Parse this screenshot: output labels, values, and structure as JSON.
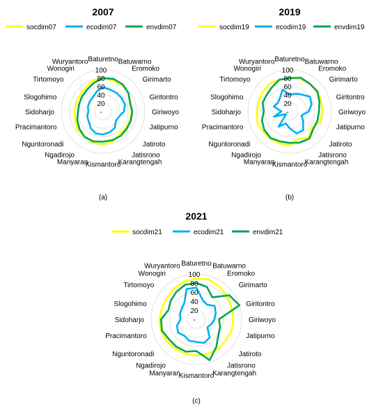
{
  "chart_data": [
    {
      "panel_label": "(a)",
      "type": "radar",
      "title": "2007",
      "categories": [
        "Baturetno",
        "Batuwarno",
        "Eromoko",
        "Girimarto",
        "Giritontro",
        "Giriwoyo",
        "Jatipurno",
        "Jatiroto",
        "Jatisrono",
        "Karangtengah",
        "Kismantoro",
        "Manyaran",
        "Ngadirojo",
        "Nguntoronadi",
        "Pracimantoro",
        "Sidoharjo",
        "Slogohimo",
        "Tirtomoyo",
        "Wonogiri",
        "Wuryantoro"
      ],
      "rlim": [
        0,
        100
      ],
      "tick_labels": [
        "-",
        "20",
        "40",
        "60",
        "80",
        "100"
      ],
      "grid": true,
      "legend": "top",
      "series": [
        {
          "name": "socdim07",
          "color": "#ffff00",
          "values": [
            80,
            78,
            78,
            75,
            70,
            68,
            68,
            67,
            67,
            75,
            78,
            78,
            75,
            75,
            70,
            68,
            68,
            68,
            72,
            78
          ]
        },
        {
          "name": "ecodim07",
          "color": "#00b0f0",
          "values": [
            58,
            55,
            55,
            55,
            55,
            50,
            40,
            38,
            48,
            52,
            55,
            55,
            50,
            42,
            40,
            35,
            38,
            40,
            42,
            50
          ]
        },
        {
          "name": "envdim07",
          "color": "#00a651",
          "values": [
            80,
            82,
            80,
            75,
            68,
            70,
            70,
            70,
            72,
            72,
            72,
            75,
            75,
            70,
            65,
            60,
            60,
            62,
            65,
            72
          ]
        }
      ]
    },
    {
      "panel_label": "(b)",
      "type": "radar",
      "title": "2019",
      "categories": [
        "Baturetno",
        "Batuwarno",
        "Eromoko",
        "Girimarto",
        "Giritontro",
        "Giriwoyo",
        "Jatipurno",
        "Jatiroto",
        "Jatisrono",
        "Karangtengah",
        "Kismantoro",
        "Manyaran",
        "Ngadirojo",
        "Nguntoronadi",
        "Pracimantoro",
        "Sidoharjo",
        "Slogohimo",
        "Tirtomoyo",
        "Wonogiri",
        "Wuryantoro"
      ],
      "rlim": [
        0,
        100
      ],
      "tick_labels": [
        "-",
        "20",
        "40",
        "60",
        "80",
        "100"
      ],
      "grid": true,
      "legend": "top",
      "series": [
        {
          "name": "socdim19",
          "color": "#ffff00",
          "values": [
            80,
            82,
            82,
            80,
            80,
            78,
            78,
            65,
            78,
            68,
            80,
            80,
            80,
            80,
            82,
            78,
            78,
            80,
            82,
            80
          ]
        },
        {
          "name": "ecodim19",
          "color": "#00b0f0",
          "values": [
            40,
            45,
            50,
            60,
            55,
            45,
            30,
            40,
            55,
            55,
            40,
            30,
            45,
            10,
            40,
            20,
            40,
            35,
            40,
            55
          ]
        },
        {
          "name": "envdim19",
          "color": "#00a651",
          "values": [
            80,
            85,
            82,
            82,
            75,
            70,
            70,
            70,
            80,
            78,
            75,
            75,
            78,
            75,
            70,
            62,
            68,
            68,
            72,
            80
          ]
        }
      ]
    },
    {
      "panel_label": "(c)",
      "type": "radar",
      "title": "2021",
      "categories": [
        "Baturetno",
        "Batuwarno",
        "Eromoko",
        "Girimarto",
        "Giritontro",
        "Giriwoyo",
        "Jatipurno",
        "Jatiroto",
        "Jatisrono",
        "Karangtengah",
        "Kismantoro",
        "Manyaran",
        "Ngadirojo",
        "Nguntoronadi",
        "Pracimantoro",
        "Sidoharjo",
        "Slogohimo",
        "Tirtomoyo",
        "Wonogiri",
        "Wuryantoro"
      ],
      "rlim": [
        0,
        100
      ],
      "tick_labels": [
        "-",
        "20",
        "40",
        "60",
        "80",
        "100"
      ],
      "grid": true,
      "legend": "top",
      "series": [
        {
          "name": "socdim21",
          "color": "#ffff00",
          "values": [
            90,
            92,
            88,
            85,
            82,
            82,
            82,
            80,
            82,
            80,
            80,
            80,
            80,
            82,
            82,
            82,
            80,
            80,
            84,
            88
          ]
        },
        {
          "name": "ecodim21",
          "color": "#00b0f0",
          "values": [
            70,
            45,
            40,
            50,
            45,
            40,
            35,
            30,
            50,
            55,
            50,
            50,
            45,
            50,
            45,
            35,
            38,
            40,
            45,
            70
          ]
        },
        {
          "name": "envdim21",
          "color": "#00a651",
          "values": [
            80,
            75,
            60,
            90,
            100,
            50,
            55,
            60,
            75,
            95,
            70,
            75,
            75,
            75,
            80,
            78,
            65,
            70,
            75,
            80
          ]
        }
      ]
    }
  ]
}
